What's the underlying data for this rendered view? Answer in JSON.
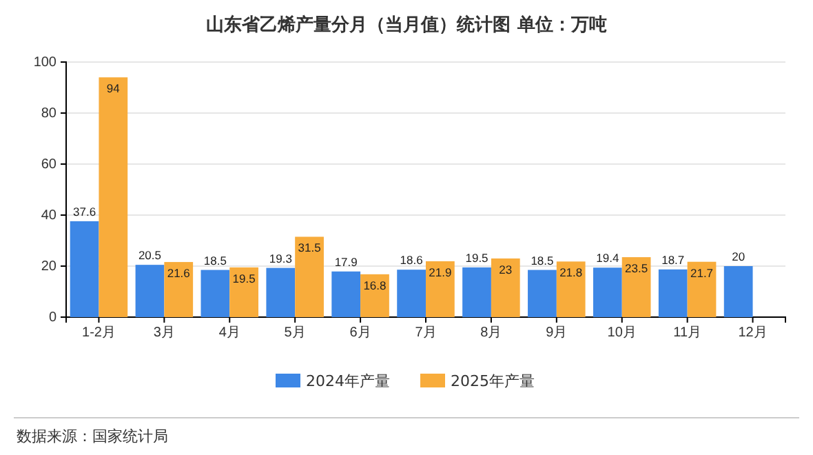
{
  "chart_data": {
    "type": "bar",
    "title": "山东省乙烯产量分月（当月值）统计图 单位：万吨",
    "categories": [
      "1-2月",
      "3月",
      "4月",
      "5月",
      "6月",
      "7月",
      "8月",
      "9月",
      "10月",
      "11月",
      "12月"
    ],
    "series": [
      {
        "name": "2024年产量",
        "color": "#3d87e6",
        "values": [
          37.6,
          20.5,
          18.5,
          19.3,
          17.9,
          18.6,
          19.5,
          18.5,
          19.4,
          18.7,
          20
        ]
      },
      {
        "name": "2025年产量",
        "color": "#f8ac3b",
        "values": [
          94,
          21.6,
          19.5,
          31.5,
          16.8,
          21.9,
          23,
          21.8,
          23.5,
          21.7,
          null
        ]
      }
    ],
    "ylim": [
      0,
      100
    ],
    "yticks": [
      0,
      20,
      40,
      60,
      80,
      100
    ],
    "grid": "y",
    "legend": "bottom",
    "data_labels": true,
    "annotations": [
      "数据来源：国家统计局"
    ]
  }
}
